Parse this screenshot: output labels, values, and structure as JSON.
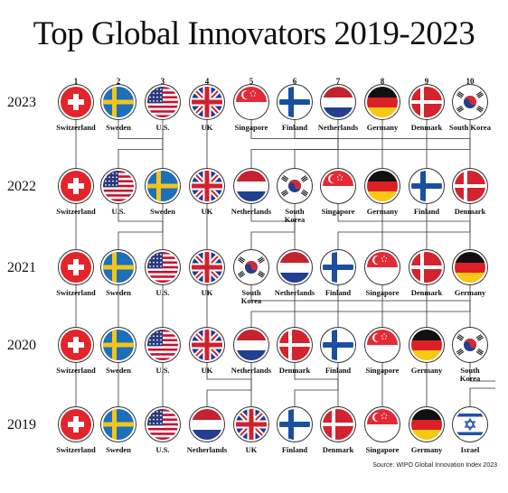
{
  "title": "Top Global Innovators 2019-2023",
  "source": "Source: WIPO Global Innovation Index 2023",
  "ranks": [
    "1",
    "2",
    "3",
    "4",
    "5",
    "6",
    "7",
    "8",
    "9",
    "10"
  ],
  "chart_data": {
    "type": "bump",
    "years": [
      "2023",
      "2022",
      "2021",
      "2020",
      "2019"
    ],
    "rankings": [
      [
        "Switzerland",
        "Sweden",
        "U.S.",
        "UK",
        "Singapore",
        "Finland",
        "Netherlands",
        "Germany",
        "Denmark",
        "South Korea"
      ],
      [
        "Switzerland",
        "U.S.",
        "Sweden",
        "UK",
        "Netherlands",
        "South Korea",
        "Singapore",
        "Germany",
        "Finland",
        "Denmark"
      ],
      [
        "Switzerland",
        "Sweden",
        "U.S.",
        "UK",
        "South Korea",
        "Netherlands",
        "Finland",
        "Singapore",
        "Denmark",
        "Germany"
      ],
      [
        "Switzerland",
        "Sweden",
        "U.S.",
        "UK",
        "Netherlands",
        "Denmark",
        "Finland",
        "Singapore",
        "Germany",
        "South Korea"
      ],
      [
        "Switzerland",
        "Sweden",
        "U.S.",
        "Netherlands",
        "UK",
        "Finland",
        "Denmark",
        "Singapore",
        "Germany",
        "Israel"
      ]
    ]
  }
}
